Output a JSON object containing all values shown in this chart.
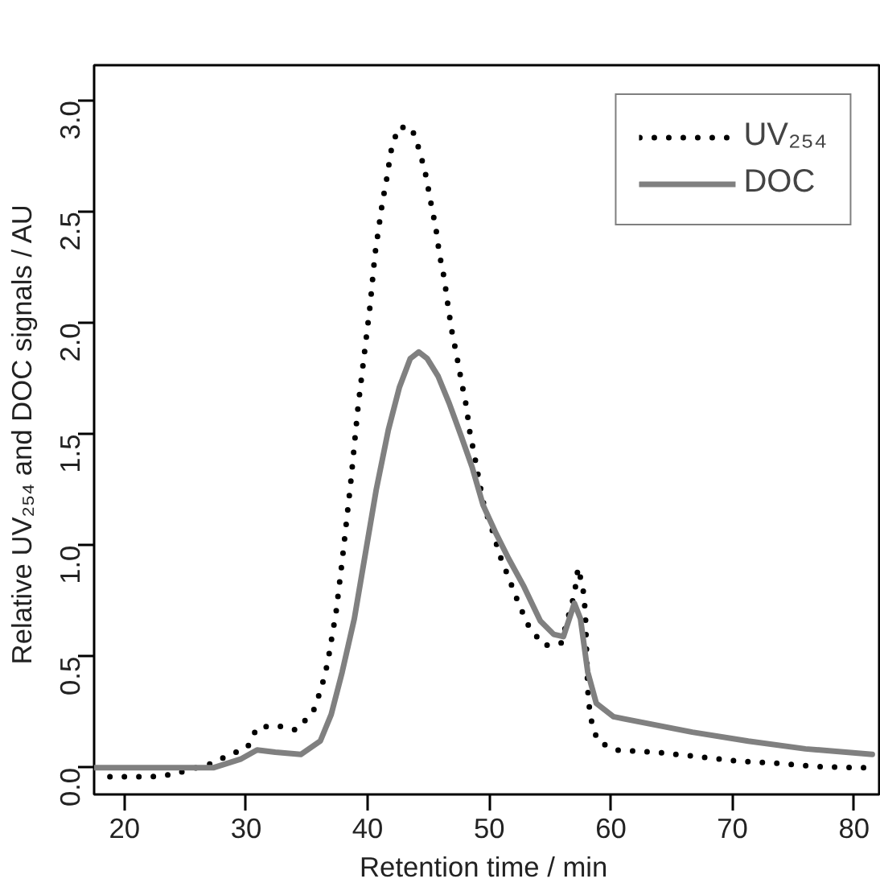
{
  "chart_data": {
    "type": "line",
    "xlabel": "Retention time  / min",
    "ylabel": "Relative UV₂₅₄ and DOC signals  / AU",
    "xlim": [
      17.5,
      82.2
    ],
    "ylim": [
      -0.12,
      3.16
    ],
    "xticks": [
      20,
      30,
      40,
      50,
      60,
      70,
      80
    ],
    "yticks": [
      {
        "value": 0,
        "label": "0.0"
      },
      {
        "value": 0.5,
        "label": "0.5"
      },
      {
        "value": 1,
        "label": "1.0"
      },
      {
        "value": 1.5,
        "label": "1.5"
      },
      {
        "value": 2,
        "label": "2.0"
      },
      {
        "value": 2.5,
        "label": "2.5"
      },
      {
        "value": 3,
        "label": "3.0"
      }
    ],
    "grid": false,
    "legend": "top right",
    "marker": "none",
    "series": [
      {
        "name": "UV₂₅₄",
        "color": "#000000",
        "line_style": "dotted",
        "x": [
          18.8,
          20.5,
          22.3,
          24.0,
          27.2,
          28.7,
          30.1,
          30.9,
          32.5,
          34.1,
          35.5,
          36.2,
          36.7,
          37.4,
          37.9,
          38.6,
          39.2,
          39.7,
          40.2,
          40.6,
          41.2,
          41.6,
          41.9,
          42.5,
          43.6,
          44.3,
          44.8,
          45.2,
          45.6,
          45.9,
          46.3,
          46.6,
          46.9,
          47.3,
          47.7,
          48.1,
          48.4,
          48.8,
          49.2,
          49.6,
          50.3,
          50.9,
          51.7,
          52.4,
          53.3,
          54.5,
          55.9,
          57.0,
          57.3,
          57.7,
          57.9,
          58.1,
          58.3,
          58.9,
          60.4,
          63.7,
          67.1,
          70.4,
          73.7,
          77.1,
          80.8
        ],
        "values": [
          -0.04,
          -0.04,
          -0.04,
          -0.03,
          0.02,
          0.06,
          0.09,
          0.18,
          0.19,
          0.17,
          0.25,
          0.36,
          0.47,
          0.7,
          0.93,
          1.28,
          1.62,
          1.85,
          2.08,
          2.31,
          2.54,
          2.66,
          2.77,
          2.88,
          2.88,
          2.77,
          2.66,
          2.54,
          2.43,
          2.31,
          2.2,
          2.08,
          1.97,
          1.86,
          1.74,
          1.63,
          1.51,
          1.4,
          1.28,
          1.17,
          1.06,
          0.95,
          0.84,
          0.74,
          0.63,
          0.55,
          0.56,
          0.78,
          0.9,
          0.81,
          0.7,
          0.35,
          0.23,
          0.12,
          0.08,
          0.07,
          0.05,
          0.03,
          0.02,
          0.005,
          0.0
        ]
      },
      {
        "name": "DOC",
        "color": "#808080",
        "line_style": "solid",
        "x": [
          17.5,
          22.6,
          27.3,
          29.6,
          30.9,
          32.4,
          34.5,
          36.1,
          37.0,
          37.9,
          38.9,
          39.8,
          40.7,
          41.7,
          42.6,
          43.5,
          44.2,
          44.9,
          45.8,
          46.7,
          47.7,
          48.6,
          49.5,
          50.5,
          51.6,
          52.8,
          54.2,
          55.3,
          56.1,
          57.0,
          57.5,
          58.1,
          58.8,
          60.2,
          61.1,
          66.7,
          71.3,
          76.0,
          81.5
        ],
        "values": [
          0.0,
          0.0,
          0.0,
          0.04,
          0.08,
          0.07,
          0.06,
          0.12,
          0.24,
          0.43,
          0.67,
          0.96,
          1.25,
          1.52,
          1.71,
          1.84,
          1.87,
          1.84,
          1.76,
          1.64,
          1.49,
          1.35,
          1.18,
          1.06,
          0.94,
          0.82,
          0.66,
          0.6,
          0.59,
          0.74,
          0.67,
          0.43,
          0.29,
          0.23,
          0.22,
          0.16,
          0.12,
          0.085,
          0.06
        ]
      }
    ]
  }
}
